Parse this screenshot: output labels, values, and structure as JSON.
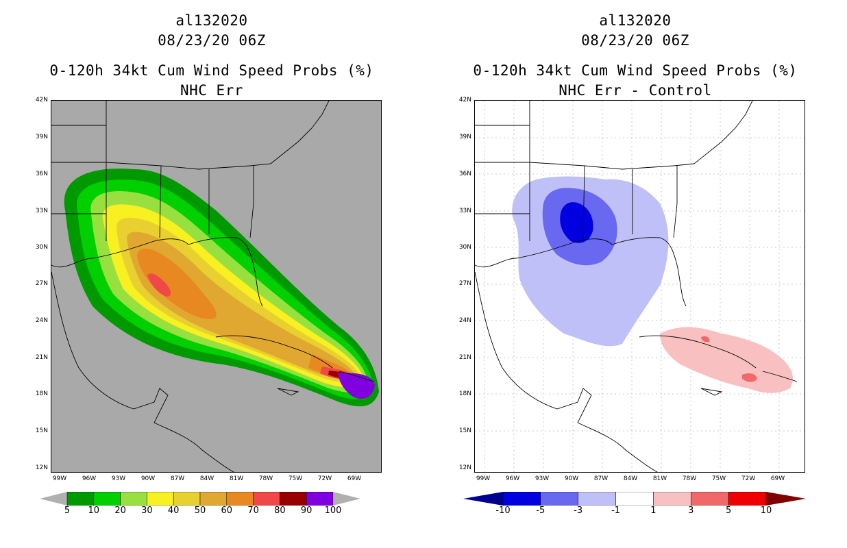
{
  "left": {
    "title1": "al132020",
    "title2": "08/23/20 06Z",
    "title3": "0-120h 34kt Cum Wind Speed Probs (%)",
    "title4": "NHC Err",
    "colorbar": {
      "labels": [
        "5",
        "10",
        "20",
        "30",
        "40",
        "50",
        "60",
        "70",
        "80",
        "90",
        "100"
      ],
      "colors": [
        "#009a00",
        "#00d000",
        "#98e040",
        "#f8f020",
        "#e8d030",
        "#e0a830",
        "#e88820",
        "#f04848",
        "#980000",
        "#8000e0"
      ],
      "under_color": "#b0b0b0",
      "over_color": "#b0b0b0"
    },
    "background_color": "#a9a9a9"
  },
  "right": {
    "title1": "al132020",
    "title2": "08/23/20 06Z",
    "title3": "0-120h 34kt Cum Wind Speed Probs (%)",
    "title4": "NHC Err - Control",
    "colorbar": {
      "labels": [
        "-10",
        "-5",
        "-3",
        "-1",
        "1",
        "3",
        "5",
        "10"
      ],
      "colors": [
        "#0000e0",
        "#6868f0",
        "#c0c0f8",
        "#ffffff",
        "#f8c0c0",
        "#f06868",
        "#f00000"
      ],
      "under_color": "#000090",
      "over_color": "#800000"
    }
  },
  "axes": {
    "lat_labels": [
      "42N",
      "39N",
      "36N",
      "33N",
      "30N",
      "27N",
      "24N",
      "21N",
      "18N",
      "15N",
      "12N"
    ],
    "lon_labels": [
      "99W",
      "96W",
      "93W",
      "90W",
      "87W",
      "84W",
      "81W",
      "78W",
      "75W",
      "72W",
      "69W"
    ]
  }
}
